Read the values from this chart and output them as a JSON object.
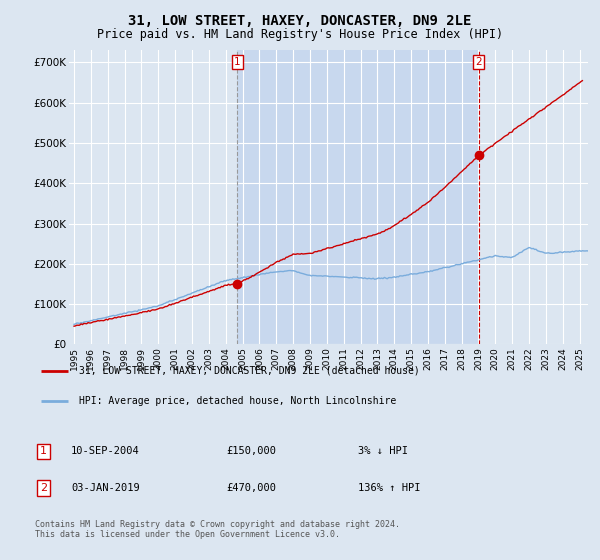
{
  "title": "31, LOW STREET, HAXEY, DONCASTER, DN9 2LE",
  "subtitle": "Price paid vs. HM Land Registry's House Price Index (HPI)",
  "title_fontsize": 10,
  "subtitle_fontsize": 8.5,
  "ylabel_ticks": [
    "£0",
    "£100K",
    "£200K",
    "£300K",
    "£400K",
    "£500K",
    "£600K",
    "£700K"
  ],
  "ytick_values": [
    0,
    100000,
    200000,
    300000,
    400000,
    500000,
    600000,
    700000
  ],
  "ylim": [
    0,
    730000
  ],
  "xlim_start": 1994.7,
  "xlim_end": 2025.5,
  "background_color": "#dce6f1",
  "plot_bg_color": "#dce6f1",
  "shade_bg_color": "#c8d8ee",
  "grid_color": "#ffffff",
  "sale1_x": 2004.69,
  "sale1_y": 150000,
  "sale2_x": 2019.01,
  "sale2_y": 470000,
  "sale1_label": "1",
  "sale2_label": "2",
  "sale_marker_color": "#cc0000",
  "sale_line_color": "#cc0000",
  "hpi_line_color": "#7aacdc",
  "legend_line1": "31, LOW STREET, HAXEY, DONCASTER, DN9 2LE (detached house)",
  "legend_line2": "HPI: Average price, detached house, North Lincolnshire",
  "annotation1_date": "10-SEP-2004",
  "annotation1_price": "£150,000",
  "annotation1_hpi": "3% ↓ HPI",
  "annotation2_date": "03-JAN-2019",
  "annotation2_price": "£470,000",
  "annotation2_hpi": "136% ↑ HPI",
  "footer": "Contains HM Land Registry data © Crown copyright and database right 2024.\nThis data is licensed under the Open Government Licence v3.0.",
  "sale_label_color": "#cc0000",
  "sale_label_bg": "#ffffff"
}
